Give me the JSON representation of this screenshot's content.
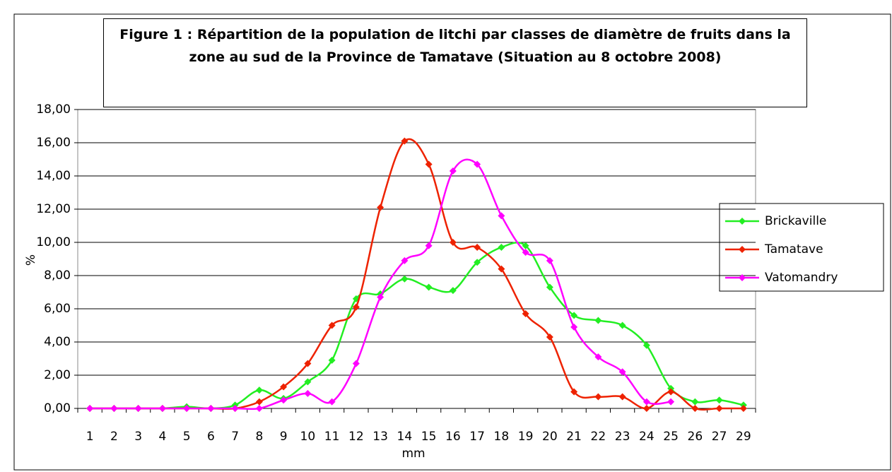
{
  "chart_data": {
    "type": "line",
    "title": "Figure 1 : Répartition de la population de litchi par classes de diamètre de fruits dans la zone au sud de la Province de Tamatave (Situation au 8 octobre 2008)",
    "xlabel": "mm",
    "ylabel": "%",
    "categories": [
      "1",
      "2",
      "3",
      "4",
      "5",
      "6",
      "7",
      "8",
      "9",
      "10",
      "11",
      "12",
      "13",
      "14",
      "15",
      "16",
      "17",
      "18",
      "19",
      "20",
      "21",
      "22",
      "23",
      "24",
      "25",
      "26",
      "27",
      "29"
    ],
    "series": [
      {
        "name": "Brickaville",
        "color": "#22ee22",
        "values": [
          0,
          0,
          0,
          0,
          0.1,
          0,
          0.2,
          1.1,
          0.6,
          1.6,
          2.9,
          6.6,
          6.9,
          7.8,
          7.3,
          7.1,
          8.8,
          9.7,
          9.8,
          7.3,
          5.6,
          5.3,
          5.0,
          3.8,
          1.2,
          0.4,
          0.5,
          0.2
        ]
      },
      {
        "name": "Tamatave",
        "color": "#ee2200",
        "values": [
          0,
          0,
          0,
          0,
          0,
          0,
          0,
          0.4,
          1.3,
          2.7,
          5.0,
          6.1,
          12.1,
          16.1,
          14.7,
          10.0,
          9.7,
          8.4,
          5.7,
          4.3,
          1.0,
          0.7,
          0.7,
          0.0,
          1.0,
          0.0,
          0.0,
          0.0
        ]
      },
      {
        "name": "Vatomandry",
        "color": "#ff00ff",
        "values": [
          0,
          0,
          0,
          0,
          0,
          0,
          0,
          0,
          0.5,
          0.9,
          0.4,
          2.7,
          6.7,
          8.9,
          9.8,
          14.3,
          14.7,
          11.6,
          9.4,
          8.9,
          4.9,
          3.1,
          2.2,
          0.4,
          0.4,
          null,
          null,
          null
        ]
      }
    ],
    "ylim": [
      0,
      18
    ],
    "yticks": [
      {
        "value": 0,
        "label": "0,00"
      },
      {
        "value": 2,
        "label": "2,00"
      },
      {
        "value": 4,
        "label": "4,00"
      },
      {
        "value": 6,
        "label": "6,00"
      },
      {
        "value": 8,
        "label": "8,00"
      },
      {
        "value": 10,
        "label": "10,00"
      },
      {
        "value": 12,
        "label": "12,00"
      },
      {
        "value": 14,
        "label": "14,00"
      },
      {
        "value": 16,
        "label": "16,00"
      },
      {
        "value": 18,
        "label": "18,00"
      }
    ],
    "grid": true,
    "legend": "right",
    "smooth": true
  }
}
